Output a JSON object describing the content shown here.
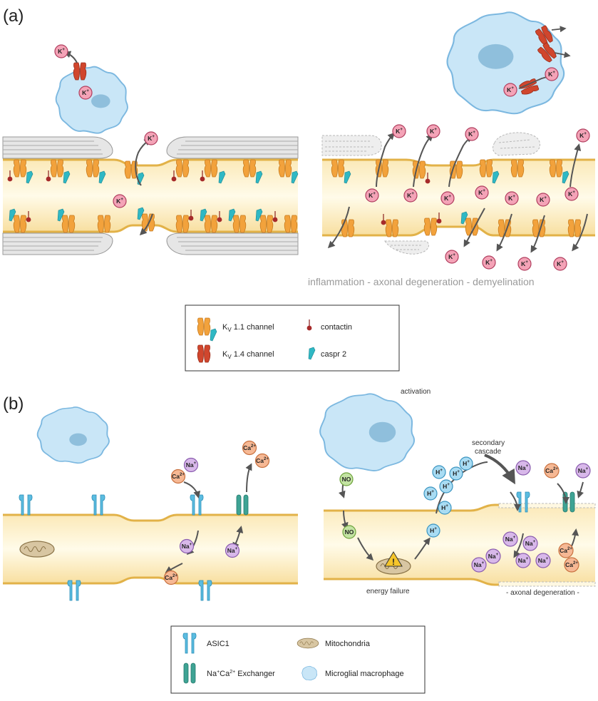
{
  "panels": {
    "a": {
      "label": "(a)",
      "caption": "inflammation - axonal degeneration - demyelination"
    },
    "b": {
      "label": "(b)",
      "annotations": {
        "activation": "activation",
        "secondary_1": "secondary",
        "secondary_2": "cascade",
        "energy_failure": "energy failure",
        "axonal_degeneration": "- axonal degeneration -"
      }
    }
  },
  "ions": {
    "k": {
      "base": "K",
      "sup": "+"
    },
    "na": {
      "base": "Na",
      "sup": "+"
    },
    "ca": {
      "base": "Ca",
      "sup": "2+"
    },
    "h": {
      "base": "H",
      "sup": "+"
    },
    "no": {
      "base": "NO",
      "sup": ""
    }
  },
  "legend_a": {
    "kv11_prefix": "K",
    "kv11_sub": "V",
    "kv11_rest": " 1.1 channel",
    "kv14_prefix": "K",
    "kv14_sub": "V",
    "kv14_rest": " 1.4 channel",
    "contactin": "contactin",
    "caspr": "caspr 2"
  },
  "legend_b": {
    "asic1": "ASIC1",
    "exch_prefix": "Na",
    "exch_sup1": "+",
    "exch_mid": "Ca",
    "exch_sup2": "2+",
    "exch_rest": " Exchanger",
    "mitochondria": "Mitochondria",
    "microglia": "Microglial macrophage"
  },
  "colors": {
    "axon": "#f8e2a6",
    "axon_border": "#e2b248",
    "myelin": "#e3e3e3",
    "kv11": "#f2a23c",
    "kv14": "#d0462d",
    "asic": "#5bbce0",
    "exchanger": "#3ea394",
    "microglia": "#c9e6f7",
    "k_ion": "#f4a3b7",
    "na_ion": "#d8b8ea",
    "ca_ion": "#f6b894",
    "h_ion": "#a9dcf3",
    "no_ion": "#c3e3a2"
  }
}
